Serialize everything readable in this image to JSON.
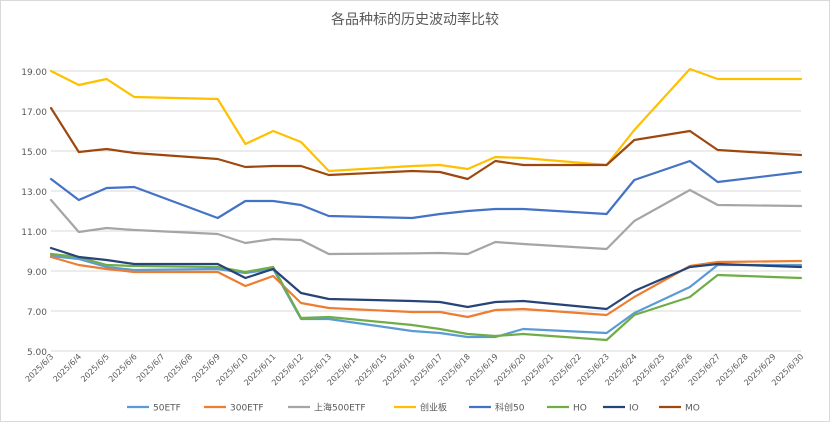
{
  "chart_data": {
    "type": "line",
    "title": "各品种标的历史波动率比较",
    "xlabel": "",
    "ylabel": "",
    "ylim": [
      5,
      21
    ],
    "yticks": [
      "5.00",
      "7.00",
      "9.00",
      "11.00",
      "13.00",
      "15.00",
      "17.00",
      "19.00"
    ],
    "grid": true,
    "legend_position": "bottom",
    "x": [
      "2025/6/3",
      "2025/6/4",
      "2025/6/5",
      "2025/6/6",
      "2025/6/7",
      "2025/6/8",
      "2025/6/9",
      "2025/6/10",
      "2025/6/11",
      "2025/6/12",
      "2025/6/13",
      "2025/6/14",
      "2025/6/15",
      "2025/6/16",
      "2025/6/17",
      "2025/6/18",
      "2025/6/19",
      "2025/6/20",
      "2025/6/21",
      "2025/6/22",
      "2025/6/23",
      "2025/6/24",
      "2025/6/25",
      "2025/6/26",
      "2025/6/27",
      "2025/6/28",
      "2025/6/29",
      "2025/6/30"
    ],
    "series": [
      {
        "name": "50ETF",
        "color": "#5b9bd5",
        "values": [
          9.75,
          9.6,
          9.2,
          9.05,
          null,
          null,
          9.1,
          8.9,
          9.1,
          6.6,
          6.6,
          null,
          null,
          6.0,
          5.9,
          5.7,
          5.7,
          6.1,
          null,
          null,
          5.9,
          6.9,
          null,
          8.2,
          9.3,
          null,
          null,
          9.3
        ]
      },
      {
        "name": "300ETF",
        "color": "#ed7d31",
        "values": [
          9.7,
          9.3,
          9.1,
          8.95,
          null,
          null,
          8.95,
          8.25,
          8.75,
          7.4,
          7.15,
          null,
          null,
          6.95,
          6.95,
          6.7,
          7.05,
          7.1,
          null,
          null,
          6.8,
          7.7,
          null,
          9.25,
          9.45,
          null,
          null,
          9.5
        ]
      },
      {
        "name": "上海500ETF",
        "color": "#a5a5a5",
        "values": [
          12.55,
          10.95,
          11.15,
          11.05,
          null,
          null,
          10.85,
          10.4,
          10.6,
          10.55,
          9.85,
          null,
          null,
          9.88,
          9.9,
          9.85,
          10.45,
          10.35,
          null,
          null,
          10.1,
          11.5,
          null,
          13.05,
          12.3,
          null,
          null,
          12.25
        ]
      },
      {
        "name": "创业板",
        "color": "#ffc000",
        "values": [
          19.0,
          18.3,
          18.6,
          17.7,
          null,
          null,
          17.6,
          15.35,
          16.0,
          15.45,
          14.0,
          null,
          null,
          14.25,
          14.3,
          14.1,
          14.7,
          14.65,
          null,
          null,
          14.3,
          16.05,
          null,
          19.1,
          18.6,
          null,
          null,
          18.6
        ]
      },
      {
        "name": "科创50",
        "color": "#4472c4",
        "values": [
          13.6,
          12.55,
          13.15,
          13.2,
          null,
          null,
          11.65,
          12.5,
          12.5,
          12.3,
          11.75,
          null,
          null,
          11.65,
          11.85,
          12.0,
          12.1,
          12.1,
          null,
          null,
          11.85,
          13.55,
          null,
          14.5,
          13.45,
          null,
          null,
          13.95
        ]
      },
      {
        "name": "HO",
        "color": "#70ad47",
        "values": [
          9.85,
          9.7,
          9.3,
          9.25,
          null,
          null,
          9.2,
          8.95,
          9.2,
          6.65,
          6.7,
          null,
          null,
          6.3,
          6.1,
          5.85,
          5.75,
          5.85,
          null,
          null,
          5.55,
          6.8,
          null,
          7.7,
          8.8,
          null,
          null,
          8.65
        ]
      },
      {
        "name": "IO",
        "color": "#264478",
        "values": [
          10.15,
          9.7,
          9.55,
          9.35,
          null,
          null,
          9.35,
          8.65,
          9.1,
          7.9,
          7.6,
          null,
          null,
          7.5,
          7.45,
          7.2,
          7.45,
          7.5,
          null,
          null,
          7.1,
          8.0,
          null,
          9.2,
          9.35,
          null,
          null,
          9.2
        ]
      },
      {
        "name": "MO",
        "color": "#9e480e",
        "values": [
          17.15,
          14.95,
          15.1,
          14.9,
          null,
          null,
          14.6,
          14.2,
          14.25,
          14.25,
          13.8,
          null,
          null,
          14.0,
          13.95,
          13.6,
          14.5,
          14.3,
          null,
          null,
          14.3,
          15.55,
          null,
          16.0,
          15.05,
          null,
          null,
          14.8
        ]
      }
    ]
  }
}
